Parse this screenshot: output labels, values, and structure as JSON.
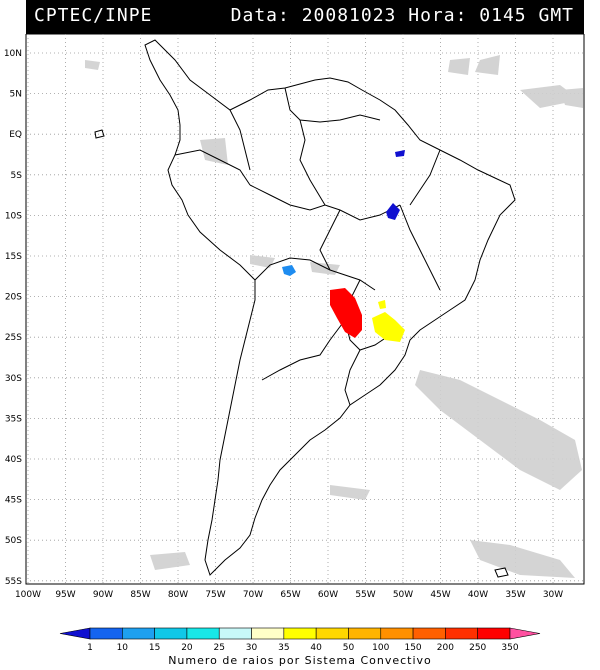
{
  "header": {
    "source": "CPTEC/INPE",
    "date_label": "Data:",
    "date": "20081023",
    "hour_label": "Hora:",
    "hour": "0145",
    "tz": "GMT"
  },
  "map": {
    "lat_labels": [
      "10N",
      "5N",
      "EQ",
      "5S",
      "10S",
      "15S",
      "20S",
      "25S",
      "30S",
      "35S",
      "40S",
      "45S",
      "50S",
      "55S"
    ],
    "lon_labels": [
      "100W",
      "95W",
      "90W",
      "85W",
      "80W",
      "75W",
      "70W",
      "65W",
      "60W",
      "55W",
      "50W",
      "45W",
      "40W",
      "35W",
      "30W"
    ]
  },
  "legend": {
    "title": "Numero de raios por Sistema Convectivo",
    "ticks": [
      "1",
      "10",
      "15",
      "20",
      "25",
      "30",
      "35",
      "40",
      "50",
      "100",
      "150",
      "200",
      "250",
      "350"
    ],
    "colors": [
      "#1010d0",
      "#1464f0",
      "#1ea0f0",
      "#10c8e8",
      "#18e8e8",
      "#c8f8f8",
      "#ffffc8",
      "#ffff00",
      "#ffd800",
      "#ffb400",
      "#ff9000",
      "#ff6000",
      "#ff3000",
      "#ff0000",
      "#ff50a0"
    ]
  }
}
